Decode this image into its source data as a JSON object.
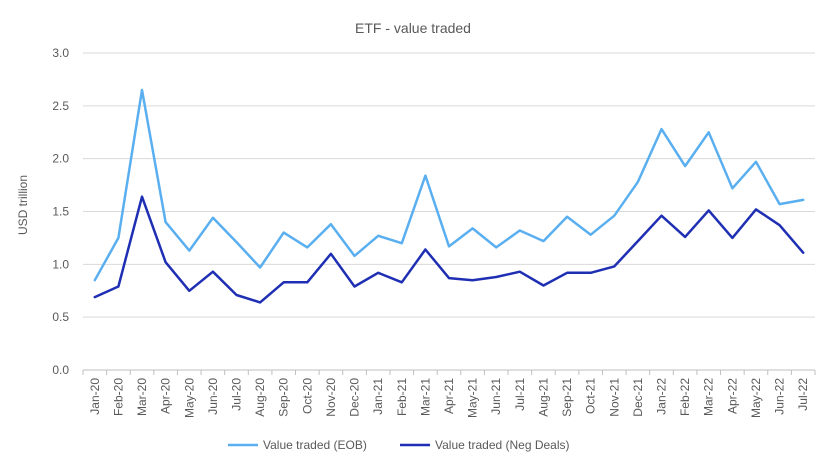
{
  "chart_data": {
    "type": "line",
    "title": "ETF - value traded",
    "xlabel": "",
    "ylabel": "USD trillion",
    "ylim": [
      0,
      3
    ],
    "yticks": [
      "0.0",
      "0.5",
      "1.0",
      "1.5",
      "2.0",
      "2.5",
      "3.0"
    ],
    "grid": true,
    "legend_position": "bottom",
    "categories": [
      "Jan-20",
      "Feb-20",
      "Mar-20",
      "Apr-20",
      "May-20",
      "Jun-20",
      "Jul-20",
      "Aug-20",
      "Sep-20",
      "Oct-20",
      "Nov-20",
      "Dec-20",
      "Jan-21",
      "Feb-21",
      "Mar-21",
      "Apr-21",
      "May-21",
      "Jun-21",
      "Jul-21",
      "Aug-21",
      "Sep-21",
      "Oct-21",
      "Nov-21",
      "Dec-21",
      "Jan-22",
      "Feb-22",
      "Mar-22",
      "Apr-22",
      "May-22",
      "Jun-22",
      "Jul-22"
    ],
    "series": [
      {
        "name": "Value traded (EOB)",
        "color": "#5aaff0",
        "values": [
          0.85,
          1.25,
          2.65,
          1.4,
          1.13,
          1.44,
          1.21,
          0.97,
          1.3,
          1.16,
          1.38,
          1.08,
          1.27,
          1.2,
          1.84,
          1.17,
          1.34,
          1.16,
          1.32,
          1.22,
          1.45,
          1.28,
          1.46,
          1.78,
          2.28,
          1.93,
          2.25,
          1.72,
          1.97,
          1.57,
          1.61
        ]
      },
      {
        "name": "Value traded (Neg Deals)",
        "color": "#1f2fb4",
        "values": [
          0.69,
          0.79,
          1.64,
          1.02,
          0.75,
          0.93,
          0.71,
          0.64,
          0.83,
          0.83,
          1.1,
          0.79,
          0.92,
          0.83,
          1.14,
          0.87,
          0.85,
          0.88,
          0.93,
          0.8,
          0.92,
          0.92,
          0.98,
          1.22,
          1.46,
          1.26,
          1.51,
          1.25,
          1.52,
          1.37,
          1.11
        ]
      }
    ]
  }
}
